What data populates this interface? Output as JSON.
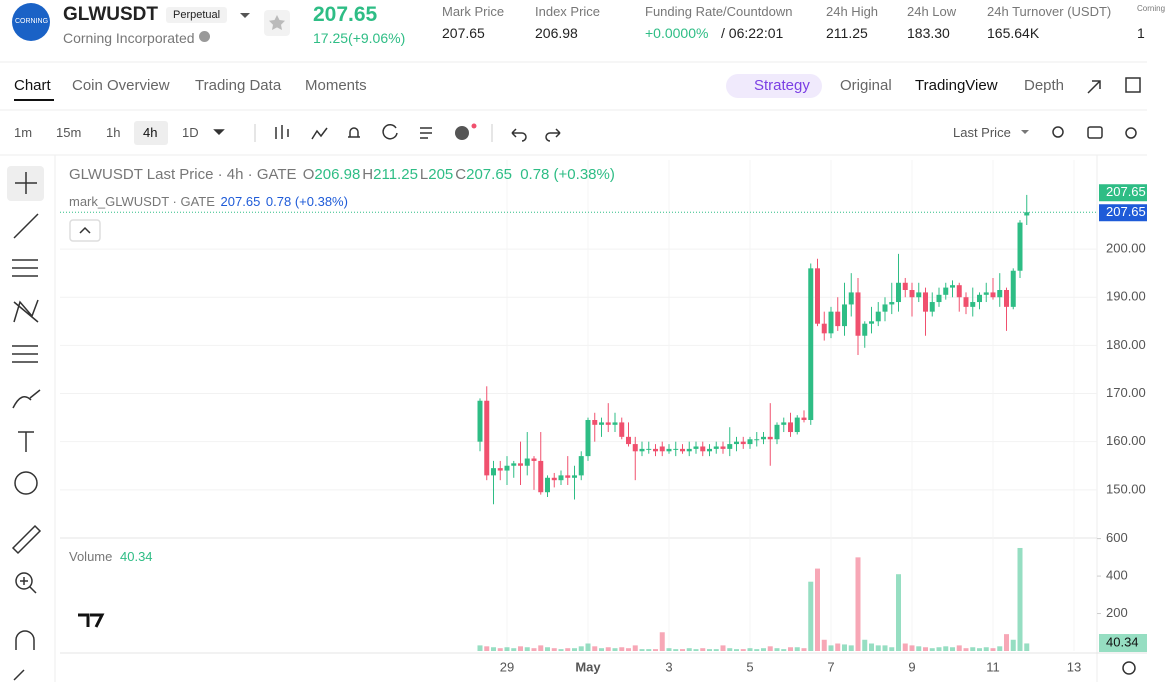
{
  "header": {
    "logo": "CORNING",
    "symbol": "GLWUSDT",
    "badge": "Perpetual",
    "company": "Corning Incorporated",
    "price": "207.65",
    "change": "17.25(+9.06%)",
    "stats": [
      {
        "label": "Mark Price",
        "value": "207.65"
      },
      {
        "label": "Index Price",
        "value": "206.98"
      },
      {
        "label": "Funding Rate/Countdown",
        "value": "+0.0000%",
        "extra": "/ 06:22:01"
      },
      {
        "label": "24h High",
        "value": "211.25"
      },
      {
        "label": "24h Low",
        "value": "183.30"
      },
      {
        "label": "24h Turnover (USDT)",
        "value": "165.64K"
      },
      {
        "label": "Corning",
        "value": "1"
      }
    ]
  },
  "tabs": [
    "Chart",
    "Coin Overview",
    "Trading Data",
    "Moments"
  ],
  "views": [
    "Strategy",
    "Original",
    "TradingView",
    "Depth"
  ],
  "intervals": [
    "1m",
    "15m",
    "1h",
    "4h",
    "1D"
  ],
  "price_type": "Last Price",
  "chart_data": {
    "type": "candlestick",
    "title": "GLWUSDT Last Price · 4h · GATE",
    "ohlc_labels": [
      "O",
      "H",
      "L",
      "C"
    ],
    "change": "0.78 (+0.38%)",
    "mark": {
      "name": "mark_GLWUSDT · GATE",
      "value": 207.65,
      "change": "0.78 (+0.38%)"
    },
    "volume_title": "Volume",
    "categories": [
      null,
      null,
      null,
      null,
      "29",
      null,
      null,
      null,
      null,
      null,
      null,
      null,
      null,
      null,
      null,
      null,
      "May",
      null,
      null,
      null,
      null,
      null,
      null,
      null,
      null,
      null,
      null,
      null,
      "3",
      null,
      null,
      null,
      null,
      null,
      null,
      null,
      null,
      null,
      null,
      null,
      "5",
      null,
      null,
      null,
      null,
      null,
      null,
      null,
      null,
      null,
      null,
      null,
      "7",
      null,
      null,
      null,
      null,
      null,
      null,
      null,
      null,
      null,
      null,
      null,
      "9",
      null,
      null,
      null,
      null,
      null,
      null,
      null,
      null,
      null,
      null,
      null,
      "11",
      null,
      null,
      null,
      null,
      null,
      null,
      null,
      null,
      null,
      null,
      null,
      "13"
    ],
    "ohlc": [
      [
        160,
        169,
        158,
        168.5
      ],
      [
        168.5,
        171.5,
        152,
        153
      ],
      [
        153,
        156,
        147,
        154.5
      ],
      [
        154.5,
        156,
        152,
        154
      ],
      [
        154,
        157,
        151,
        155
      ],
      [
        155,
        156,
        152.5,
        155.5
      ],
      [
        155.5,
        160,
        151,
        155
      ],
      [
        155,
        162,
        153,
        156.5
      ],
      [
        156.5,
        157,
        150,
        156
      ],
      [
        156,
        162,
        149,
        149.5
      ],
      [
        149.5,
        153,
        148.5,
        152.5
      ],
      [
        152.5,
        153.5,
        150.5,
        152
      ],
      [
        152,
        154,
        151,
        153
      ],
      [
        153,
        157,
        151,
        152.5
      ],
      [
        152.5,
        155,
        148,
        153
      ],
      [
        153,
        158,
        152,
        157
      ],
      [
        157,
        165,
        156,
        164.5
      ],
      [
        164.5,
        166,
        160,
        163.5
      ],
      [
        163.5,
        165,
        161,
        164
      ],
      [
        164,
        168,
        162,
        163.5
      ],
      [
        163.5,
        166,
        162,
        164
      ],
      [
        164,
        165,
        160.5,
        161
      ],
      [
        161,
        164,
        159,
        159.5
      ],
      [
        159.5,
        161,
        152,
        158
      ],
      [
        158,
        160,
        157,
        158.5
      ],
      [
        158.5,
        160,
        157.5,
        158.5
      ],
      [
        158.5,
        159.5,
        157,
        158
      ],
      [
        159,
        160,
        157,
        158
      ],
      [
        158,
        159.5,
        157.5,
        158.5
      ],
      [
        158.5,
        160,
        157,
        158.5
      ],
      [
        158.5,
        159.5,
        157.5,
        158
      ],
      [
        158,
        160,
        157,
        158.5
      ],
      [
        158.5,
        160,
        157.5,
        159
      ],
      [
        159,
        160,
        157,
        158
      ],
      [
        158,
        159.5,
        157,
        158.5
      ],
      [
        158.5,
        160,
        157.5,
        159
      ],
      [
        159,
        160,
        157.5,
        158.5
      ],
      [
        158.5,
        163,
        157,
        159.5
      ],
      [
        159.5,
        161,
        158,
        160
      ],
      [
        160,
        161,
        158.5,
        159.5
      ],
      [
        159.5,
        161,
        158.5,
        160.5
      ],
      [
        160.5,
        162,
        159,
        160.5
      ],
      [
        160.5,
        162,
        159.5,
        161
      ],
      [
        161,
        168,
        155,
        160.5
      ],
      [
        160.5,
        164,
        159.5,
        163.5
      ],
      [
        163.5,
        165,
        162,
        164
      ],
      [
        164,
        166,
        161,
        162
      ],
      [
        162,
        165.5,
        161.5,
        165
      ],
      [
        165,
        166.5,
        164,
        164.5
      ],
      [
        164.5,
        197,
        163.5,
        196
      ],
      [
        196,
        198,
        184,
        184.5
      ],
      [
        184.5,
        187,
        181,
        182.5
      ],
      [
        182.5,
        188,
        181.5,
        187
      ],
      [
        187,
        190,
        183,
        184
      ],
      [
        184,
        193,
        182,
        188.5
      ],
      [
        188.5,
        195,
        186,
        191
      ],
      [
        191,
        194,
        178,
        182
      ],
      [
        182,
        185,
        179.5,
        184.5
      ],
      [
        184.5,
        188,
        182.5,
        185
      ],
      [
        185,
        189,
        184,
        187
      ],
      [
        187,
        190,
        185,
        188.5
      ],
      [
        188.5,
        193,
        186.5,
        189
      ],
      [
        189,
        199,
        187,
        193
      ],
      [
        193,
        194,
        190,
        191.5
      ],
      [
        191.5,
        193,
        186,
        190
      ],
      [
        190,
        193,
        189,
        191
      ],
      [
        191,
        192,
        182,
        187
      ],
      [
        187,
        191,
        186,
        189
      ],
      [
        189,
        192,
        188,
        190.5
      ],
      [
        190.5,
        193,
        189.5,
        192
      ],
      [
        192,
        193.5,
        190,
        192.5
      ],
      [
        192.5,
        193,
        187,
        190
      ],
      [
        190,
        191,
        186.5,
        188
      ],
      [
        188,
        192,
        186,
        189
      ],
      [
        189,
        191,
        187.5,
        190.5
      ],
      [
        190.5,
        193,
        189,
        191
      ],
      [
        191,
        194,
        189.5,
        190
      ],
      [
        190,
        195,
        188,
        191.5
      ],
      [
        191.5,
        192,
        183,
        188
      ],
      [
        188,
        196,
        187.5,
        195.5
      ],
      [
        195.5,
        206,
        194,
        205.5
      ],
      [
        206.98,
        211.25,
        205,
        207.65
      ],
      null,
      null,
      null,
      null,
      null,
      null,
      null
    ],
    "volume": [
      30,
      25,
      20,
      15,
      20,
      15,
      25,
      20,
      15,
      30,
      20,
      15,
      10,
      15,
      15,
      25,
      40,
      25,
      15,
      20,
      15,
      20,
      15,
      30,
      10,
      10,
      10,
      100,
      15,
      10,
      10,
      15,
      10,
      15,
      10,
      10,
      30,
      15,
      10,
      10,
      15,
      10,
      15,
      25,
      15,
      10,
      20,
      20,
      15,
      370,
      440,
      60,
      30,
      40,
      35,
      30,
      500,
      60,
      40,
      30,
      30,
      20,
      410,
      40,
      30,
      25,
      20,
      15,
      20,
      25,
      20,
      30,
      15,
      20,
      15,
      20,
      15,
      25,
      90,
      60,
      550,
      40.34,
      null,
      null,
      null,
      null,
      null,
      null,
      null
    ],
    "up_color": "#2ebd85",
    "down_color": "#f0506e",
    "mark_color": "#1e5bd8",
    "ylim": [
      140.2,
      218.5
    ],
    "yticks": [
      {
        "value": 150,
        "label": "150.00"
      },
      {
        "value": 160,
        "label": "160.00"
      },
      {
        "value": 170,
        "label": "170.00"
      },
      {
        "value": 180,
        "label": "180.00"
      },
      {
        "value": 190,
        "label": "190.00"
      },
      {
        "value": 200,
        "label": "200.00"
      }
    ],
    "volume_ylim": [
      0,
      630
    ],
    "volume_yticks": [
      200,
      400,
      600
    ],
    "grid": true
  }
}
